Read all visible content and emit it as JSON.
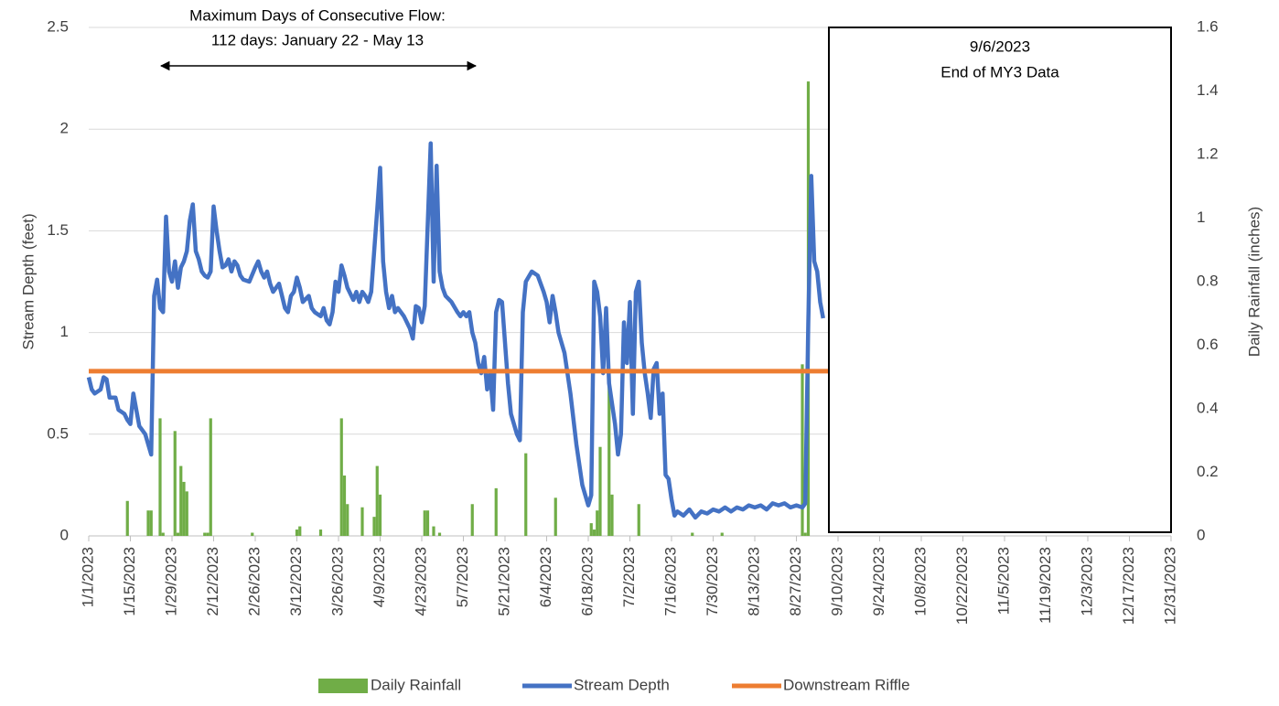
{
  "chart_data": {
    "type": "line",
    "ylabel": "Stream Depth (feet)",
    "y2label": "Daily Rainfall (inches)",
    "xlim": [
      "2023-01-01",
      "2023-12-31"
    ],
    "xticks": [
      {
        "value": "2023-01-01",
        "label": "1/1/2023"
      },
      {
        "value": "2023-01-15",
        "label": "1/15/2023"
      },
      {
        "value": "2023-01-29",
        "label": "1/29/2023"
      },
      {
        "value": "2023-02-12",
        "label": "2/12/2023"
      },
      {
        "value": "2023-02-26",
        "label": "2/26/2023"
      },
      {
        "value": "2023-03-12",
        "label": "3/12/2023"
      },
      {
        "value": "2023-03-26",
        "label": "3/26/2023"
      },
      {
        "value": "2023-04-09",
        "label": "4/9/2023"
      },
      {
        "value": "2023-04-23",
        "label": "4/23/2023"
      },
      {
        "value": "2023-05-07",
        "label": "5/7/2023"
      },
      {
        "value": "2023-05-21",
        "label": "5/21/2023"
      },
      {
        "value": "2023-06-04",
        "label": "6/4/2023"
      },
      {
        "value": "2023-06-18",
        "label": "6/18/2023"
      },
      {
        "value": "2023-07-02",
        "label": "7/2/2023"
      },
      {
        "value": "2023-07-16",
        "label": "7/16/2023"
      },
      {
        "value": "2023-07-30",
        "label": "7/30/2023"
      },
      {
        "value": "2023-08-13",
        "label": "8/13/2023"
      },
      {
        "value": "2023-08-27",
        "label": "8/27/2023"
      },
      {
        "value": "2023-09-10",
        "label": "9/10/2023"
      },
      {
        "value": "2023-09-24",
        "label": "9/24/2023"
      },
      {
        "value": "2023-10-08",
        "label": "10/8/2023"
      },
      {
        "value": "2023-10-22",
        "label": "10/22/2023"
      },
      {
        "value": "2023-11-05",
        "label": "11/5/2023"
      },
      {
        "value": "2023-11-19",
        "label": "11/19/2023"
      },
      {
        "value": "2023-12-03",
        "label": "12/3/2023"
      },
      {
        "value": "2023-12-17",
        "label": "12/17/2023"
      },
      {
        "value": "2023-12-31",
        "label": "12/31/2023"
      }
    ],
    "ylim": [
      0,
      2.5
    ],
    "yticks": [
      0,
      0.5,
      1,
      1.5,
      2,
      2.5
    ],
    "y2lim": [
      0,
      1.6
    ],
    "y2ticks": [
      0,
      0.2,
      0.4,
      0.6,
      0.8,
      1,
      1.2,
      1.4,
      1.6
    ],
    "grid": true,
    "legend": "bottom",
    "annotations": {
      "flow_line1": "Maximum Days of Consecutive Flow:",
      "flow_line2": "112 days: January 22 - May 13",
      "end_line1": "9/6/2023",
      "end_line2": "End of MY3 Data"
    },
    "series": [
      {
        "name": "Daily Rainfall",
        "type": "bar",
        "axis": "y2",
        "color": "#70ad47",
        "x": [
          "2023-01-14",
          "2023-01-21",
          "2023-01-22",
          "2023-01-25",
          "2023-01-26",
          "2023-01-30",
          "2023-01-31",
          "2023-02-01",
          "2023-02-02",
          "2023-02-03",
          "2023-02-09",
          "2023-02-10",
          "2023-02-11",
          "2023-02-25",
          "2023-03-12",
          "2023-03-13",
          "2023-03-20",
          "2023-03-27",
          "2023-03-28",
          "2023-03-29",
          "2023-04-03",
          "2023-04-07",
          "2023-04-08",
          "2023-04-09",
          "2023-04-24",
          "2023-04-25",
          "2023-04-27",
          "2023-04-29",
          "2023-05-10",
          "2023-05-18",
          "2023-05-28",
          "2023-06-07",
          "2023-06-19",
          "2023-06-20",
          "2023-06-21",
          "2023-06-22",
          "2023-06-25",
          "2023-06-26",
          "2023-07-05",
          "2023-07-23",
          "2023-08-02",
          "2023-08-29",
          "2023-08-30",
          "2023-08-31"
        ],
        "values": [
          0.11,
          0.08,
          0.08,
          0.37,
          0.01,
          0.33,
          0.01,
          0.22,
          0.17,
          0.14,
          0.01,
          0.01,
          0.37,
          0.01,
          0.02,
          0.03,
          0.02,
          0.37,
          0.19,
          0.1,
          0.09,
          0.06,
          0.22,
          0.13,
          0.08,
          0.08,
          0.03,
          0.01,
          0.1,
          0.15,
          0.26,
          0.12,
          0.04,
          0.02,
          0.08,
          0.28,
          0.47,
          0.13,
          0.1,
          0.01,
          0.01,
          0.54,
          0.01,
          1.43
        ]
      },
      {
        "name": "Stream Depth",
        "type": "line",
        "color": "#4472c4",
        "x": [
          "2023-01-01",
          "2023-01-02",
          "2023-01-03",
          "2023-01-05",
          "2023-01-06",
          "2023-01-07",
          "2023-01-08",
          "2023-01-10",
          "2023-01-11",
          "2023-01-13",
          "2023-01-14",
          "2023-01-15",
          "2023-01-16",
          "2023-01-17",
          "2023-01-18",
          "2023-01-19",
          "2023-01-20",
          "2023-01-21",
          "2023-01-22",
          "2023-01-23",
          "2023-01-24",
          "2023-01-25",
          "2023-01-26",
          "2023-01-27",
          "2023-01-28",
          "2023-01-29",
          "2023-01-30",
          "2023-01-31",
          "2023-02-01",
          "2023-02-02",
          "2023-02-03",
          "2023-02-04",
          "2023-02-05",
          "2023-02-06",
          "2023-02-07",
          "2023-02-08",
          "2023-02-09",
          "2023-02-10",
          "2023-02-11",
          "2023-02-12",
          "2023-02-13",
          "2023-02-14",
          "2023-02-15",
          "2023-02-16",
          "2023-02-17",
          "2023-02-18",
          "2023-02-19",
          "2023-02-20",
          "2023-02-21",
          "2023-02-22",
          "2023-02-24",
          "2023-02-26",
          "2023-02-27",
          "2023-02-28",
          "2023-03-01",
          "2023-03-02",
          "2023-03-03",
          "2023-03-04",
          "2023-03-06",
          "2023-03-07",
          "2023-03-08",
          "2023-03-09",
          "2023-03-10",
          "2023-03-11",
          "2023-03-12",
          "2023-03-13",
          "2023-03-14",
          "2023-03-16",
          "2023-03-17",
          "2023-03-18",
          "2023-03-20",
          "2023-03-21",
          "2023-03-22",
          "2023-03-23",
          "2023-03-24",
          "2023-03-25",
          "2023-03-26",
          "2023-03-27",
          "2023-03-28",
          "2023-03-29",
          "2023-03-31",
          "2023-04-01",
          "2023-04-02",
          "2023-04-03",
          "2023-04-04",
          "2023-04-05",
          "2023-04-06",
          "2023-04-07",
          "2023-04-08",
          "2023-04-09",
          "2023-04-10",
          "2023-04-11",
          "2023-04-12",
          "2023-04-13",
          "2023-04-14",
          "2023-04-15",
          "2023-04-17",
          "2023-04-19",
          "2023-04-20",
          "2023-04-21",
          "2023-04-22",
          "2023-04-23",
          "2023-04-24",
          "2023-04-26",
          "2023-04-27",
          "2023-04-28",
          "2023-04-29",
          "2023-04-30",
          "2023-05-01",
          "2023-05-03",
          "2023-05-05",
          "2023-05-06",
          "2023-05-07",
          "2023-05-08",
          "2023-05-09",
          "2023-05-10",
          "2023-05-11",
          "2023-05-12",
          "2023-05-13",
          "2023-05-14",
          "2023-05-15",
          "2023-05-16",
          "2023-05-17",
          "2023-05-18",
          "2023-05-19",
          "2023-05-20",
          "2023-05-21",
          "2023-05-22",
          "2023-05-23",
          "2023-05-25",
          "2023-05-26",
          "2023-05-27",
          "2023-05-28",
          "2023-05-30",
          "2023-06-01",
          "2023-06-03",
          "2023-06-04",
          "2023-06-05",
          "2023-06-06",
          "2023-06-07",
          "2023-06-08",
          "2023-06-10",
          "2023-06-12",
          "2023-06-14",
          "2023-06-16",
          "2023-06-18",
          "2023-06-19",
          "2023-06-20",
          "2023-06-21",
          "2023-06-22",
          "2023-06-23",
          "2023-06-24",
          "2023-06-25",
          "2023-06-27",
          "2023-06-28",
          "2023-06-29",
          "2023-06-30",
          "2023-07-01",
          "2023-07-02",
          "2023-07-03",
          "2023-07-04",
          "2023-07-05",
          "2023-07-06",
          "2023-07-07",
          "2023-07-08",
          "2023-07-09",
          "2023-07-10",
          "2023-07-11",
          "2023-07-12",
          "2023-07-13",
          "2023-07-14",
          "2023-07-15",
          "2023-07-16",
          "2023-07-17",
          "2023-07-18",
          "2023-07-20",
          "2023-07-22",
          "2023-07-24",
          "2023-07-26",
          "2023-07-28",
          "2023-07-30",
          "2023-08-01",
          "2023-08-03",
          "2023-08-05",
          "2023-08-07",
          "2023-08-09",
          "2023-08-11",
          "2023-08-13",
          "2023-08-15",
          "2023-08-17",
          "2023-08-19",
          "2023-08-21",
          "2023-08-23",
          "2023-08-25",
          "2023-08-27",
          "2023-08-29",
          "2023-08-30",
          "2023-08-31",
          "2023-09-01",
          "2023-09-02",
          "2023-09-03",
          "2023-09-04",
          "2023-09-05"
        ],
        "values": [
          0.78,
          0.72,
          0.7,
          0.72,
          0.78,
          0.77,
          0.68,
          0.68,
          0.62,
          0.6,
          0.57,
          0.55,
          0.7,
          0.62,
          0.54,
          0.52,
          0.5,
          0.45,
          0.4,
          1.18,
          1.26,
          1.12,
          1.1,
          1.57,
          1.3,
          1.25,
          1.35,
          1.22,
          1.32,
          1.35,
          1.4,
          1.55,
          1.63,
          1.4,
          1.36,
          1.3,
          1.28,
          1.27,
          1.3,
          1.62,
          1.5,
          1.4,
          1.32,
          1.33,
          1.36,
          1.3,
          1.35,
          1.33,
          1.28,
          1.26,
          1.25,
          1.32,
          1.35,
          1.3,
          1.27,
          1.3,
          1.24,
          1.2,
          1.24,
          1.18,
          1.12,
          1.1,
          1.18,
          1.2,
          1.27,
          1.22,
          1.15,
          1.18,
          1.12,
          1.1,
          1.08,
          1.12,
          1.06,
          1.04,
          1.1,
          1.25,
          1.2,
          1.33,
          1.28,
          1.22,
          1.16,
          1.2,
          1.15,
          1.2,
          1.18,
          1.15,
          1.2,
          1.4,
          1.6,
          1.81,
          1.35,
          1.2,
          1.12,
          1.18,
          1.1,
          1.12,
          1.08,
          1.02,
          0.97,
          1.13,
          1.12,
          1.05,
          1.13,
          1.93,
          1.25,
          1.82,
          1.3,
          1.22,
          1.18,
          1.15,
          1.1,
          1.08,
          1.1,
          1.08,
          1.1,
          1.0,
          0.95,
          0.85,
          0.8,
          0.88,
          0.72,
          0.8,
          0.62,
          1.1,
          1.16,
          1.15,
          0.95,
          0.75,
          0.6,
          0.5,
          0.47,
          1.1,
          1.25,
          1.3,
          1.28,
          1.2,
          1.15,
          1.05,
          1.18,
          1.1,
          1.0,
          0.9,
          0.7,
          0.45,
          0.25,
          0.15,
          0.2,
          1.25,
          1.2,
          1.08,
          0.8,
          1.12,
          0.75,
          0.55,
          0.4,
          0.5,
          1.05,
          0.85,
          1.15,
          0.6,
          1.2,
          1.25,
          0.95,
          0.8,
          0.7,
          0.58,
          0.82,
          0.85,
          0.6,
          0.7,
          0.3,
          0.28,
          0.18,
          0.1,
          0.12,
          0.1,
          0.13,
          0.09,
          0.12,
          0.11,
          0.13,
          0.12,
          0.14,
          0.12,
          0.14,
          0.13,
          0.15,
          0.14,
          0.15,
          0.13,
          0.16,
          0.15,
          0.16,
          0.14,
          0.15,
          0.14,
          0.16,
          1.05,
          1.77,
          1.35,
          1.3,
          1.15,
          1.07
        ]
      },
      {
        "name": "Downstream Riffle",
        "type": "line",
        "color": "#ed7d31",
        "x": [
          "2023-01-01",
          "2023-12-31"
        ],
        "values": [
          0.81,
          0.81
        ]
      }
    ]
  }
}
